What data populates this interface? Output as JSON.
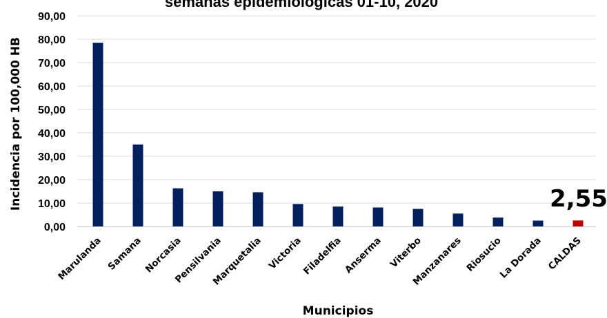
{
  "chart_data": {
    "type": "bar",
    "title": "semanas epidemiológicas 01-10, 2020",
    "xlabel": "Municipios",
    "ylabel": "Incidencia por 100,000 HB",
    "categories": [
      "Marulanda",
      "Samana",
      "Norcasia",
      "Pensilvania",
      "Marquetalia",
      "Victoria",
      "Filadelfia",
      "Anserma",
      "Viterbo",
      "Manzanares",
      "Riosucio",
      "La Dorada",
      "CALDAS"
    ],
    "values": [
      78.5,
      35.0,
      16.3,
      15.0,
      14.6,
      9.6,
      8.5,
      8.1,
      7.5,
      5.5,
      3.8,
      2.5,
      2.55
    ],
    "ylim": [
      0,
      90
    ],
    "yticks": [
      "0,00",
      "10,00",
      "20,00",
      "30,00",
      "40,00",
      "50,00",
      "60,00",
      "70,00",
      "80,00",
      "90,00"
    ],
    "grid": true,
    "bar_color": "#002060",
    "highlight_color": "#c00000",
    "highlight_category": "CALDAS",
    "annotation": "2,55"
  }
}
